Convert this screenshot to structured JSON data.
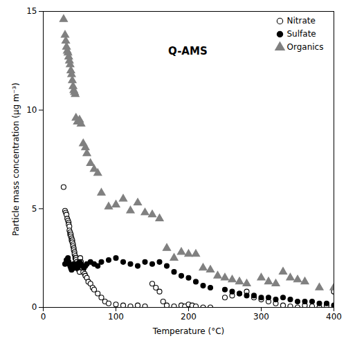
{
  "chart_data": {
    "type": "scatter",
    "title": "Q-AMS",
    "x_label": "Temperature (°C)",
    "y_label": "Particle mass concentration (μg m⁻³)",
    "xlim": [
      0,
      400
    ],
    "ylim": [
      0,
      15
    ],
    "xticks": [
      0,
      100,
      200,
      300,
      400
    ],
    "yticks": [
      0,
      5,
      10,
      15
    ],
    "grid": false,
    "legend": "upper right",
    "series": [
      {
        "name": "Nitrate",
        "color": "#000000",
        "marker": "circle_open",
        "x": [
          28,
          30,
          31,
          32,
          33,
          34,
          35,
          35,
          36,
          36,
          37,
          37,
          38,
          38,
          39,
          39,
          40,
          40,
          41,
          41,
          42,
          42,
          43,
          43,
          44,
          44,
          45,
          45,
          46,
          46,
          47,
          48,
          49,
          50,
          51,
          52,
          53,
          54,
          55,
          57,
          58,
          60,
          62,
          65,
          68,
          70,
          75,
          80,
          85,
          90,
          100,
          110,
          120,
          130,
          140,
          150,
          155,
          160,
          165,
          170,
          180,
          190,
          195,
          200,
          205,
          210,
          220,
          230,
          250,
          260,
          270,
          280,
          290,
          300,
          310,
          320,
          330,
          340,
          350,
          360,
          370,
          380,
          390,
          400
        ],
        "values": [
          6.1,
          4.9,
          4.8,
          4.7,
          4.5,
          4.4,
          4.3,
          4.2,
          4.1,
          3.9,
          3.8,
          3.7,
          3.7,
          3.6,
          3.5,
          3.4,
          3.4,
          3.3,
          3.2,
          3.1,
          3.0,
          2.9,
          2.8,
          2.7,
          2.6,
          2.5,
          2.5,
          2.4,
          2.3,
          2.2,
          2.1,
          2.0,
          1.9,
          1.8,
          2.5,
          2.3,
          2.1,
          2.0,
          1.8,
          1.7,
          1.6,
          1.5,
          1.3,
          1.2,
          1.0,
          0.9,
          0.7,
          0.5,
          0.3,
          0.2,
          0.15,
          0.1,
          0.05,
          0.1,
          0.05,
          1.2,
          1.0,
          0.8,
          0.3,
          0.1,
          0.05,
          0.1,
          0.05,
          0.15,
          0.1,
          0.05,
          0.0,
          0.0,
          0.5,
          0.6,
          0.7,
          0.8,
          0.5,
          0.4,
          0.3,
          0.2,
          0.1,
          0.05,
          0.0,
          0.1,
          0.05,
          0.0,
          0.1,
          0.8
        ]
      },
      {
        "name": "Sulfate",
        "color": "#000000",
        "marker": "circle",
        "x": [
          30,
          32,
          33,
          34,
          35,
          36,
          37,
          38,
          39,
          40,
          41,
          42,
          43,
          44,
          45,
          46,
          47,
          48,
          50,
          52,
          54,
          56,
          58,
          60,
          65,
          70,
          75,
          80,
          90,
          100,
          110,
          120,
          130,
          140,
          150,
          160,
          170,
          180,
          190,
          200,
          210,
          220,
          230,
          250,
          260,
          270,
          280,
          290,
          300,
          310,
          320,
          330,
          340,
          350,
          360,
          370,
          380,
          390,
          400
        ],
        "values": [
          2.2,
          2.4,
          2.3,
          2.5,
          2.3,
          2.2,
          2.1,
          2.0,
          1.9,
          2.1,
          2.0,
          2.2,
          2.1,
          2.0,
          2.1,
          2.2,
          2.0,
          2.1,
          2.3,
          2.2,
          2.1,
          2.0,
          2.1,
          2.2,
          2.3,
          2.2,
          2.1,
          2.3,
          2.4,
          2.5,
          2.3,
          2.2,
          2.1,
          2.3,
          2.2,
          2.3,
          2.1,
          1.8,
          1.6,
          1.5,
          1.3,
          1.1,
          1.0,
          0.9,
          0.8,
          0.7,
          0.6,
          0.6,
          0.5,
          0.5,
          0.4,
          0.5,
          0.4,
          0.3,
          0.3,
          0.3,
          0.2,
          0.2,
          0.1
        ]
      },
      {
        "name": "Organics",
        "color": "#808080",
        "marker": "triangle",
        "x": [
          28,
          30,
          31,
          32,
          33,
          34,
          35,
          36,
          37,
          38,
          39,
          40,
          41,
          42,
          43,
          44,
          45,
          47,
          50,
          52,
          55,
          58,
          60,
          65,
          70,
          75,
          80,
          90,
          100,
          110,
          120,
          130,
          140,
          150,
          160,
          170,
          180,
          190,
          200,
          210,
          220,
          230,
          240,
          250,
          260,
          270,
          280,
          300,
          310,
          320,
          330,
          340,
          350,
          360,
          380,
          400
        ],
        "values": [
          14.6,
          13.8,
          13.5,
          13.2,
          13.0,
          12.9,
          12.7,
          12.5,
          12.3,
          12.0,
          11.8,
          11.5,
          11.2,
          11.0,
          10.9,
          10.8,
          9.6,
          9.4,
          9.5,
          9.3,
          8.3,
          8.1,
          7.8,
          7.3,
          7.0,
          6.8,
          5.8,
          5.1,
          5.2,
          5.5,
          4.9,
          5.3,
          4.8,
          4.7,
          4.5,
          3.0,
          2.5,
          2.8,
          2.7,
          2.7,
          2.0,
          1.9,
          1.6,
          1.5,
          1.4,
          1.3,
          1.2,
          1.5,
          1.3,
          1.2,
          1.8,
          1.5,
          1.4,
          1.3,
          1.0,
          1.0
        ]
      }
    ]
  }
}
